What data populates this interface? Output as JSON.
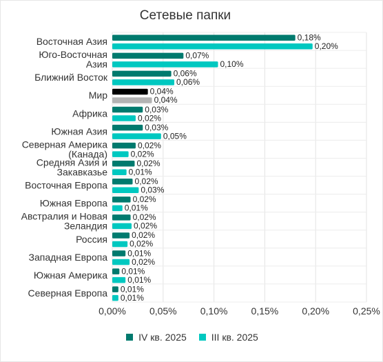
{
  "chart_data": {
    "type": "bar",
    "orientation": "horizontal",
    "title": "Сетевые папки",
    "categories": [
      [
        "Восточная Азия"
      ],
      [
        "Юго-Восточная",
        "Азия"
      ],
      [
        "Ближний Восток"
      ],
      [
        "Мир"
      ],
      [
        "Африка"
      ],
      [
        "Южная Азия"
      ],
      [
        "Северная Америка",
        "(Канада)"
      ],
      [
        "Средняя Азия и",
        "Закавказье"
      ],
      [
        "Восточная Европа"
      ],
      [
        "Южная Европа"
      ],
      [
        "Австралия и Новая",
        "Зеландия"
      ],
      [
        "Россия"
      ],
      [
        "Западная Европа"
      ],
      [
        "Южная Америка"
      ],
      [
        "Северная Европа"
      ]
    ],
    "series": [
      {
        "name": "IV кв. 2025",
        "color": "#007a6e",
        "values": [
          0.18,
          0.07,
          0.058,
          0.035,
          0.03,
          0.03,
          0.023,
          0.022,
          0.02,
          0.018,
          0.018,
          0.017,
          0.013,
          0.007,
          0.006
        ],
        "labels": [
          "0,18%",
          "0,07%",
          "0,06%",
          "0,04%",
          "0,03%",
          "0,03%",
          "0,02%",
          "0,02%",
          "0,02%",
          "0,02%",
          "0,02%",
          "0,02%",
          "0,01%",
          "0,01%",
          "0,01%"
        ]
      },
      {
        "name": "III кв. 2025",
        "color": "#00c8c0",
        "values": [
          0.197,
          0.104,
          0.061,
          0.039,
          0.023,
          0.048,
          0.016,
          0.014,
          0.026,
          0.01,
          0.019,
          0.015,
          0.017,
          0.013,
          0.006
        ],
        "labels": [
          "0,20%",
          "0,10%",
          "0,06%",
          "0,04%",
          "0,02%",
          "0,05%",
          "0,02%",
          "0,01%",
          "0,03%",
          "0,01%",
          "0,02%",
          "0,02%",
          "0,02%",
          "0,01%",
          "0,01%"
        ]
      }
    ],
    "highlight": {
      "category_index": 3,
      "colors": [
        "#000000",
        "#b3b3b3"
      ]
    },
    "xlim": [
      0,
      0.25
    ],
    "xticks": [
      0,
      0.05,
      0.1,
      0.15,
      0.2,
      0.25
    ],
    "xtick_labels": [
      "0,00%",
      "0,05%",
      "0,10%",
      "0,15%",
      "0,20%",
      "0,25%"
    ],
    "grid": true,
    "legend_position": "bottom"
  }
}
